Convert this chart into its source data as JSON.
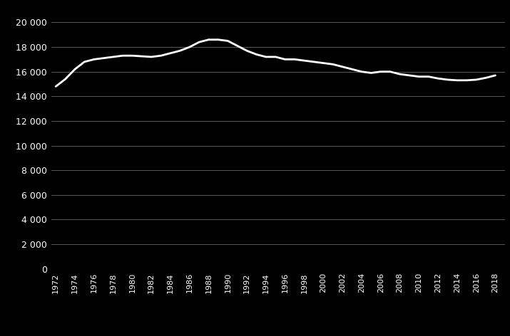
{
  "years": [
    1972,
    1973,
    1974,
    1975,
    1976,
    1977,
    1978,
    1979,
    1980,
    1981,
    1982,
    1983,
    1984,
    1985,
    1986,
    1987,
    1988,
    1989,
    1990,
    1991,
    1992,
    1993,
    1994,
    1995,
    1996,
    1997,
    1998,
    1999,
    2000,
    2001,
    2002,
    2003,
    2004,
    2005,
    2006,
    2007,
    2008,
    2009,
    2010,
    2011,
    2012,
    2013,
    2014,
    2015,
    2016,
    2017,
    2018
  ],
  "values": [
    14800,
    15400,
    16200,
    16800,
    17000,
    17100,
    17200,
    17300,
    17300,
    17250,
    17200,
    17300,
    17500,
    17700,
    18000,
    18400,
    18600,
    18600,
    18500,
    18100,
    17700,
    17400,
    17200,
    17200,
    17000,
    17000,
    16900,
    16800,
    16700,
    16600,
    16400,
    16200,
    16000,
    15900,
    16000,
    16000,
    15800,
    15700,
    15600,
    15600,
    15450,
    15350,
    15300,
    15300,
    15350,
    15500,
    15700
  ],
  "line_color": "#ffffff",
  "background_color": "#000000",
  "grid_color": "#666666",
  "text_color": "#ffffff",
  "ytick_labels": [
    "0",
    "2 000",
    "4 000",
    "6 000",
    "8 000",
    "10 000",
    "12 000",
    "14 000",
    "16 000",
    "18 000",
    "20 000"
  ],
  "ytick_values": [
    0,
    2000,
    4000,
    6000,
    8000,
    10000,
    12000,
    14000,
    16000,
    18000,
    20000
  ],
  "xtick_years": [
    1972,
    1974,
    1976,
    1978,
    1980,
    1982,
    1984,
    1986,
    1988,
    1990,
    1992,
    1994,
    1996,
    1998,
    2000,
    2002,
    2004,
    2006,
    2008,
    2010,
    2012,
    2014,
    2016,
    2018
  ],
  "ylim": [
    0,
    21000
  ],
  "xlim": [
    1971.5,
    2019.0
  ]
}
